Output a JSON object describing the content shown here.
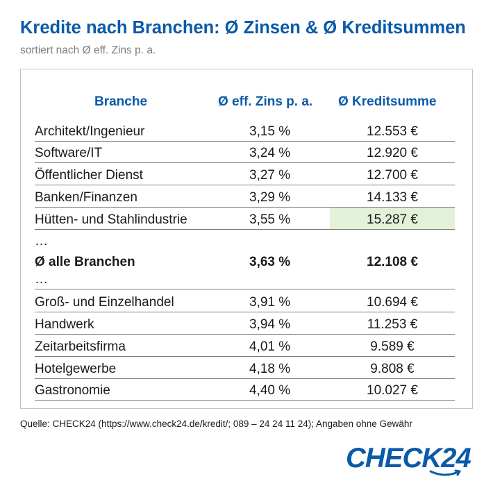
{
  "header": {
    "title": "Kredite nach Branchen: Ø Zinsen & Ø Kreditsummen",
    "subtitle": "sortiert nach Ø eff. Zins p. a."
  },
  "table": {
    "columns": [
      "Branche",
      "Ø eff. Zins p. a.",
      "Ø Kreditsumme"
    ],
    "rows": [
      {
        "name": "Architekt/Ingenieur",
        "zins": "3,15 %",
        "summe": "12.553 €"
      },
      {
        "name": "Software/IT",
        "zins": "3,24 %",
        "summe": "12.920 €"
      },
      {
        "name": "Öffentlicher Dienst",
        "zins": "3,27 %",
        "summe": "12.700 €"
      },
      {
        "name": "Banken/Finanzen",
        "zins": "3,29 %",
        "summe": "14.133 €"
      },
      {
        "name": "Hütten- und Stahlindustrie",
        "zins": "3,55 %",
        "summe": "15.287 €",
        "highlight_summe": true
      },
      {
        "name": "…",
        "zins": "",
        "summe": ""
      },
      {
        "name": "Ø alle Branchen",
        "zins": "3,63 %",
        "summe": "12.108 €",
        "bold": true
      },
      {
        "name": "…",
        "zins": "",
        "summe": ""
      },
      {
        "name": "Groß- und Einzelhandel",
        "zins": "3,91 %",
        "summe": "10.694 €"
      },
      {
        "name": "Handwerk",
        "zins": "3,94 %",
        "summe": "11.253 €"
      },
      {
        "name": "Zeitarbeitsfirma",
        "zins": "4,01 %",
        "summe": "9.589 €"
      },
      {
        "name": "Hotelgewerbe",
        "zins": "4,18 %",
        "summe": "9.808 €"
      },
      {
        "name": "Gastronomie",
        "zins": "4,40 %",
        "summe": "10.027 €"
      }
    ]
  },
  "footer": {
    "source": "Quelle: CHECK24 (https://www.check24.de/kredit/; 089 – 24 24 11 24); Angaben ohne Gewähr",
    "logo_text": "CHECK24"
  },
  "colors": {
    "accent": "#0a5aa8",
    "highlight": "#e3f1d8"
  }
}
